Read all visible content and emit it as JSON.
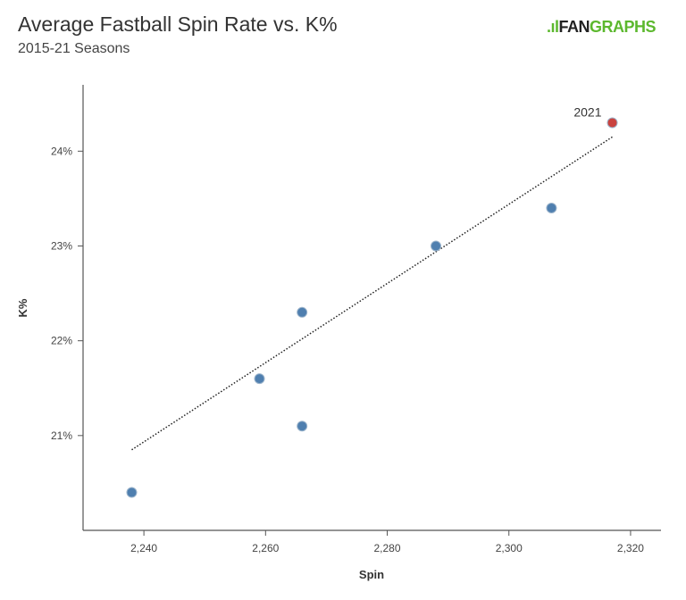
{
  "chart_data": {
    "type": "scatter",
    "title": "Average Fastball Spin Rate vs. K%",
    "subtitle": "2015-21 Seasons",
    "xlabel": "Spin",
    "ylabel": "K%",
    "xlim": [
      2230,
      2325
    ],
    "ylim": [
      20.0,
      24.7
    ],
    "xticks": [
      2240,
      2260,
      2280,
      2300,
      2320
    ],
    "xtick_labels": [
      "2,240",
      "2,260",
      "2,280",
      "2,300",
      "2,320"
    ],
    "yticks": [
      21,
      22,
      23,
      24
    ],
    "ytick_labels": [
      "21%",
      "22%",
      "23%",
      "24%"
    ],
    "grid": false,
    "points": [
      {
        "x": 2238,
        "y": 20.4,
        "color": "#4f7faf"
      },
      {
        "x": 2259,
        "y": 21.6,
        "color": "#4f7faf"
      },
      {
        "x": 2266,
        "y": 22.3,
        "color": "#4f7faf"
      },
      {
        "x": 2266,
        "y": 21.1,
        "color": "#4f7faf"
      },
      {
        "x": 2288,
        "y": 23.0,
        "color": "#4f7faf"
      },
      {
        "x": 2307,
        "y": 23.4,
        "color": "#4f7faf"
      },
      {
        "x": 2317,
        "y": 24.3,
        "color": "#c9433f",
        "label": "2021"
      }
    ],
    "trendline": {
      "style": "dotted",
      "from": [
        2238,
        20.85
      ],
      "to": [
        2317,
        24.15
      ]
    }
  },
  "logo": {
    "text_a": "FAN",
    "text_b": "GRAPHS"
  }
}
